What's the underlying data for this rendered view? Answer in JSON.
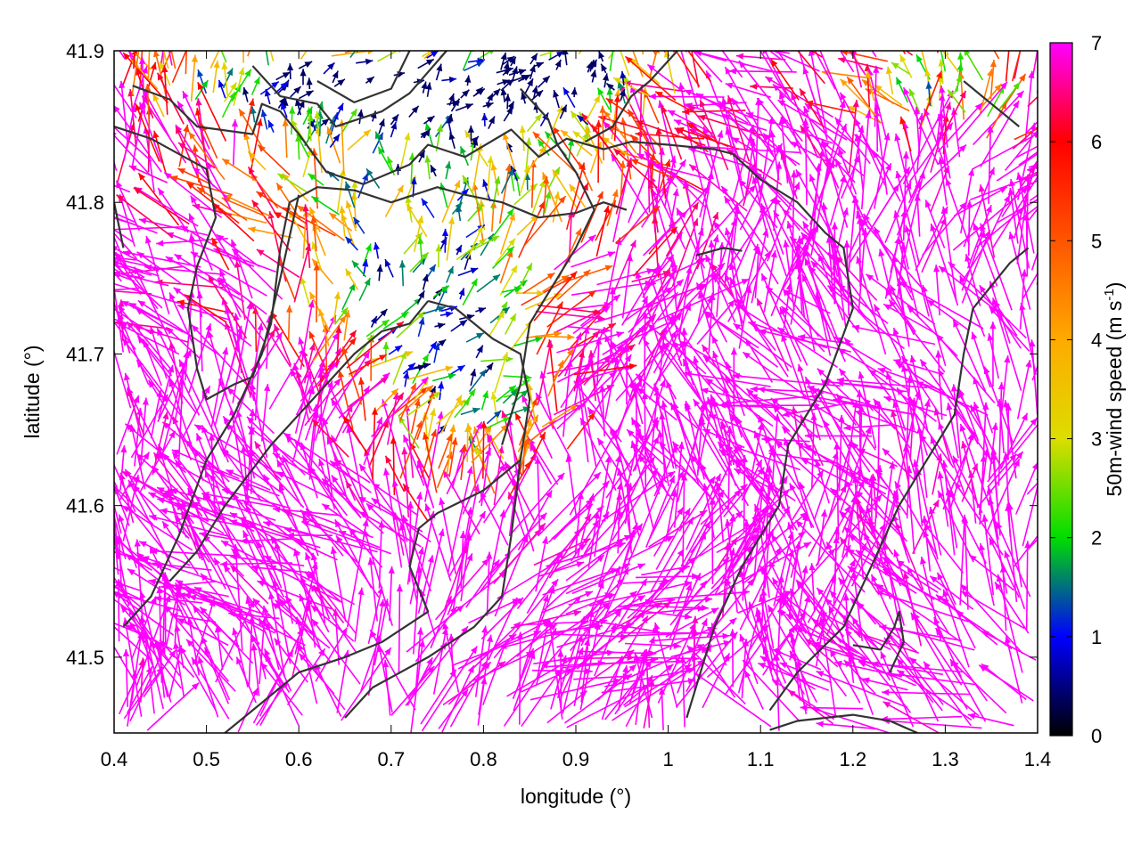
{
  "chart_data": {
    "type": "vector-field",
    "xlabel": "longitude (°)",
    "ylabel": "latitude (°)",
    "colorbar_label": "50m-wind speed (m s",
    "colorbar_label_sup": "-1",
    "colorbar_label_tail": ")",
    "xlim": [
      0.4,
      1.4
    ],
    "ylim": [
      41.45,
      41.9
    ],
    "x_ticks": [
      {
        "value": 0.4,
        "label": "0.4"
      },
      {
        "value": 0.5,
        "label": "0.5"
      },
      {
        "value": 0.6,
        "label": "0.6"
      },
      {
        "value": 0.7,
        "label": "0.7"
      },
      {
        "value": 0.8,
        "label": "0.8"
      },
      {
        "value": 0.9,
        "label": "0.9"
      },
      {
        "value": 1.0,
        "label": "1"
      },
      {
        "value": 1.1,
        "label": "1.1"
      },
      {
        "value": 1.2,
        "label": "1.2"
      },
      {
        "value": 1.3,
        "label": "1.3"
      },
      {
        "value": 1.4,
        "label": "1.4"
      }
    ],
    "y_ticks": [
      {
        "value": 41.5,
        "label": "41.5"
      },
      {
        "value": 41.6,
        "label": "41.6"
      },
      {
        "value": 41.7,
        "label": "41.7"
      },
      {
        "value": 41.8,
        "label": "41.8"
      },
      {
        "value": 41.9,
        "label": "41.9"
      }
    ],
    "colorbar": {
      "min": 0,
      "max": 7,
      "ticks": [
        {
          "value": 0,
          "label": "0"
        },
        {
          "value": 1,
          "label": "1"
        },
        {
          "value": 2,
          "label": "2"
        },
        {
          "value": 3,
          "label": "3"
        },
        {
          "value": 4,
          "label": "4"
        },
        {
          "value": 5,
          "label": "5"
        },
        {
          "value": 6,
          "label": "6"
        },
        {
          "value": 7,
          "label": "7"
        }
      ],
      "stops": [
        {
          "value": 0,
          "color": "#000000"
        },
        {
          "value": 1,
          "color": "#0000ff"
        },
        {
          "value": 2,
          "color": "#00dd00"
        },
        {
          "value": 3,
          "color": "#dddd00"
        },
        {
          "value": 4,
          "color": "#ffaa00"
        },
        {
          "value": 5,
          "color": "#ff5500"
        },
        {
          "value": 6,
          "color": "#ff0000"
        },
        {
          "value": 7,
          "color": "#ff00ff"
        }
      ]
    },
    "contour_color": "#333333",
    "contours": [
      [
        [
          0.42,
          41.877
        ],
        [
          0.46,
          41.868
        ],
        [
          0.49,
          41.85
        ],
        [
          0.55,
          41.845
        ],
        [
          0.56,
          41.865
        ],
        [
          0.58,
          41.86
        ],
        [
          0.6,
          41.845
        ],
        [
          0.63,
          41.82
        ],
        [
          0.67,
          41.812
        ],
        [
          0.72,
          41.825
        ],
        [
          0.74,
          41.838
        ],
        [
          0.78,
          41.83
        ],
        [
          0.83,
          41.848
        ],
        [
          0.86,
          41.83
        ],
        [
          0.89,
          41.842
        ],
        [
          0.93,
          41.835
        ],
        [
          0.96,
          41.84
        ],
        [
          1.0,
          41.838
        ],
        [
          1.05,
          41.835
        ],
        [
          1.07,
          41.832
        ],
        [
          1.1,
          41.815
        ],
        [
          1.14,
          41.8
        ],
        [
          1.17,
          41.78
        ],
        [
          1.19,
          41.77
        ],
        [
          1.2,
          41.73
        ],
        [
          1.17,
          41.68
        ],
        [
          1.13,
          41.64
        ],
        [
          1.12,
          41.6
        ],
        [
          1.08,
          41.56
        ],
        [
          1.05,
          41.52
        ],
        [
          1.02,
          41.46
        ]
      ],
      [
        [
          0.4,
          41.85
        ],
        [
          0.44,
          41.842
        ],
        [
          0.47,
          41.832
        ],
        [
          0.5,
          41.822
        ],
        [
          0.51,
          41.79
        ],
        [
          0.49,
          41.758
        ],
        [
          0.48,
          41.73
        ],
        [
          0.49,
          41.69
        ],
        [
          0.5,
          41.67
        ],
        [
          0.53,
          41.68
        ],
        [
          0.55,
          41.685
        ],
        [
          0.57,
          41.72
        ],
        [
          0.58,
          41.77
        ],
        [
          0.59,
          41.8
        ]
      ],
      [
        [
          0.59,
          41.8
        ],
        [
          0.62,
          41.81
        ],
        [
          0.66,
          41.808
        ],
        [
          0.7,
          41.8
        ],
        [
          0.75,
          41.81
        ],
        [
          0.78,
          41.805
        ],
        [
          0.82,
          41.8
        ],
        [
          0.86,
          41.79
        ],
        [
          0.9,
          41.793
        ],
        [
          0.93,
          41.8
        ],
        [
          0.955,
          41.795
        ]
      ],
      [
        [
          0.6,
          41.805
        ],
        [
          0.58,
          41.75
        ],
        [
          0.56,
          41.7
        ],
        [
          0.53,
          41.66
        ],
        [
          0.5,
          41.63
        ],
        [
          0.47,
          41.58
        ],
        [
          0.44,
          41.54
        ],
        [
          0.41,
          41.52
        ]
      ],
      [
        [
          0.76,
          41.9
        ],
        [
          0.72,
          41.872
        ],
        [
          0.69,
          41.86
        ],
        [
          0.64,
          41.85
        ],
        [
          0.62,
          41.865
        ],
        [
          0.58,
          41.87
        ],
        [
          0.55,
          41.89
        ]
      ],
      [
        [
          0.72,
          41.9
        ],
        [
          0.7,
          41.875
        ],
        [
          0.66,
          41.866
        ],
        [
          0.62,
          41.88
        ]
      ],
      [
        [
          0.74,
          41.735
        ],
        [
          0.72,
          41.72
        ],
        [
          0.69,
          41.715
        ],
        [
          0.66,
          41.7
        ],
        [
          0.63,
          41.68
        ],
        [
          0.6,
          41.66
        ],
        [
          0.57,
          41.64
        ],
        [
          0.52,
          41.6
        ],
        [
          0.49,
          41.57
        ],
        [
          0.46,
          41.55
        ]
      ],
      [
        [
          0.74,
          41.735
        ],
        [
          0.77,
          41.73
        ],
        [
          0.81,
          41.71
        ],
        [
          0.84,
          41.7
        ],
        [
          0.85,
          41.67
        ],
        [
          0.84,
          41.63
        ],
        [
          0.8,
          41.61
        ],
        [
          0.75,
          41.595
        ],
        [
          0.73,
          41.585
        ],
        [
          0.72,
          41.56
        ],
        [
          0.74,
          41.53
        ],
        [
          0.69,
          41.51
        ],
        [
          0.65,
          41.5
        ],
        [
          0.6,
          41.49
        ],
        [
          0.56,
          41.47
        ],
        [
          0.52,
          41.45
        ]
      ],
      [
        [
          0.84,
          41.63
        ],
        [
          0.83,
          41.58
        ],
        [
          0.82,
          41.54
        ],
        [
          0.79,
          41.52
        ],
        [
          0.74,
          41.5
        ],
        [
          0.68,
          41.48
        ],
        [
          0.65,
          41.46
        ]
      ],
      [
        [
          1.01,
          41.9
        ],
        [
          0.98,
          41.88
        ],
        [
          0.96,
          41.87
        ],
        [
          0.94,
          41.85
        ],
        [
          0.91,
          41.84
        ]
      ],
      [
        [
          0.84,
          41.875
        ],
        [
          0.87,
          41.855
        ],
        [
          0.88,
          41.838
        ],
        [
          0.9,
          41.82
        ],
        [
          0.92,
          41.795
        ],
        [
          0.9,
          41.77
        ],
        [
          0.87,
          41.74
        ],
        [
          0.85,
          41.72
        ],
        [
          0.84,
          41.68
        ],
        [
          0.82,
          41.64
        ]
      ],
      [
        [
          1.32,
          41.88
        ],
        [
          1.34,
          41.87
        ],
        [
          1.36,
          41.86
        ],
        [
          1.38,
          41.85
        ]
      ],
      [
        [
          1.39,
          41.77
        ],
        [
          1.37,
          41.76
        ],
        [
          1.33,
          41.73
        ],
        [
          1.32,
          41.7
        ],
        [
          1.31,
          41.66
        ],
        [
          1.28,
          41.63
        ],
        [
          1.25,
          41.6
        ],
        [
          1.22,
          41.56
        ],
        [
          1.19,
          41.52
        ],
        [
          1.14,
          41.49
        ],
        [
          1.11,
          41.465
        ]
      ],
      [
        [
          1.2,
          41.508
        ],
        [
          1.23,
          41.505
        ],
        [
          1.245,
          41.52
        ],
        [
          1.25,
          41.53
        ],
        [
          1.255,
          41.51
        ],
        [
          1.24,
          41.49
        ]
      ],
      [
        [
          1.11,
          41.452
        ],
        [
          1.14,
          41.458
        ],
        [
          1.2,
          41.462
        ],
        [
          1.24,
          41.458
        ],
        [
          1.27,
          41.45
        ]
      ],
      [
        [
          0.4,
          41.8
        ],
        [
          0.41,
          41.77
        ]
      ],
      [
        [
          1.03,
          41.765
        ],
        [
          1.06,
          41.77
        ],
        [
          1.08,
          41.768
        ]
      ]
    ],
    "low_wind_regions": [
      {
        "lon": 0.76,
        "lat": 41.83,
        "rlon": 0.22,
        "rlat": 0.065
      },
      {
        "lon": 0.62,
        "lat": 41.875,
        "rlon": 0.2,
        "rlat": 0.03
      },
      {
        "lon": 0.72,
        "lat": 41.73,
        "rlon": 0.13,
        "rlat": 0.05
      },
      {
        "lon": 0.78,
        "lat": 41.66,
        "rlon": 0.09,
        "rlat": 0.05
      },
      {
        "lon": 1.3,
        "lat": 41.87,
        "rlon": 0.1,
        "rlat": 0.03
      },
      {
        "lon": 0.9,
        "lat": 41.88,
        "rlon": 0.1,
        "rlat": 0.025
      }
    ]
  }
}
